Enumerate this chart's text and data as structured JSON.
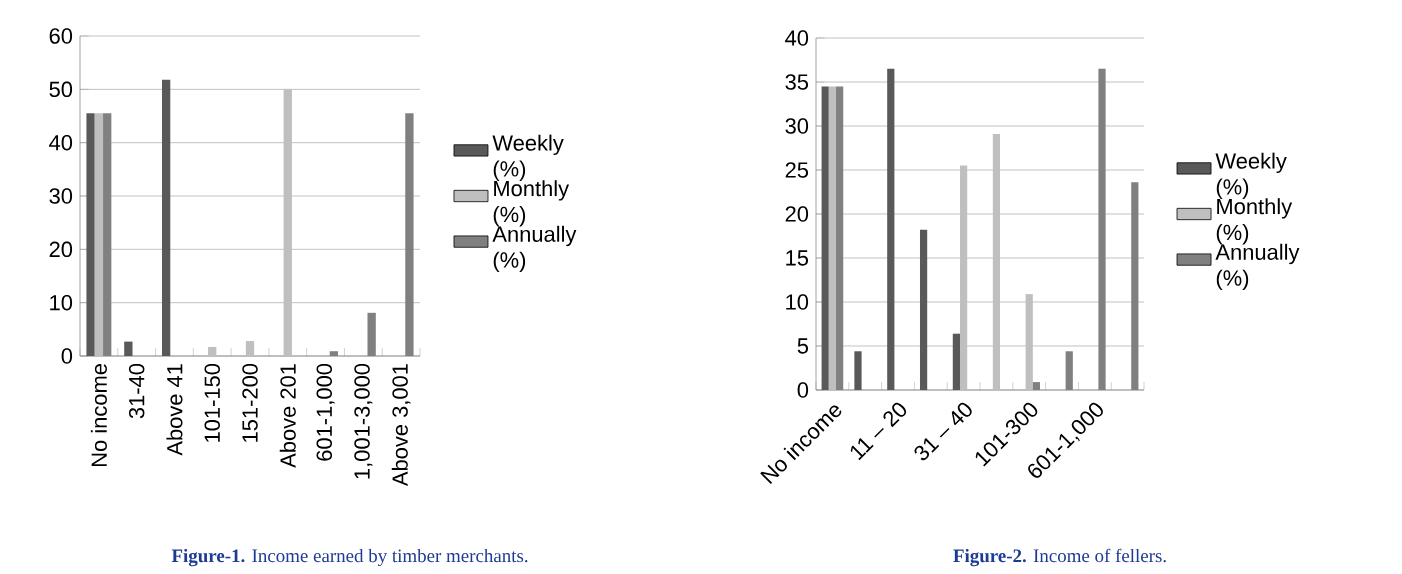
{
  "chart_data": [
    {
      "type": "bar",
      "categories": [
        "No income",
        "31-40",
        "Above 41",
        "101-150",
        "151-200",
        "Above 201",
        "601-1,000",
        "1,001-3,000",
        "Above 3,001"
      ],
      "series": [
        {
          "name": "Weekly (%)",
          "color": "#595959",
          "values": [
            45.5,
            2.7,
            51.8,
            null,
            null,
            null,
            null,
            null,
            null
          ]
        },
        {
          "name": "Monthly (%)",
          "color": "#bfbfbf",
          "values": [
            45.5,
            null,
            null,
            1.7,
            2.8,
            50,
            null,
            null,
            null
          ]
        },
        {
          "name": "Annually (%)",
          "color": "#808080",
          "values": [
            45.5,
            null,
            null,
            null,
            null,
            null,
            0.9,
            8.1,
            45.5
          ]
        }
      ],
      "ylim": [
        0,
        60
      ],
      "yticks": [
        0,
        10,
        20,
        30,
        40,
        50,
        60
      ],
      "grid": "y",
      "legend": "right",
      "annotations": [
        "**Figure-1.** Income earned by timber merchants."
      ]
    },
    {
      "type": "bar",
      "categories": [
        "No income",
        null,
        "11 – 20",
        null,
        "31 – 40",
        null,
        "101-300",
        null,
        "601-1,000",
        null
      ],
      "series": [
        {
          "name": "Weekly (%)",
          "color": "#595959",
          "values": [
            34.5,
            4.4,
            36.5,
            18.2,
            6.4,
            null,
            null,
            null,
            null,
            null
          ]
        },
        {
          "name": "Monthly (%)",
          "color": "#bfbfbf",
          "values": [
            34.5,
            null,
            null,
            null,
            25.5,
            29.1,
            10.9,
            null,
            null,
            null
          ]
        },
        {
          "name": "Annually (%)",
          "color": "#808080",
          "values": [
            34.5,
            null,
            null,
            null,
            null,
            null,
            0.9,
            4.4,
            36.5,
            23.6
          ]
        }
      ],
      "ylim": [
        0,
        40
      ],
      "yticks": [
        0,
        5,
        10,
        15,
        20,
        25,
        30,
        35,
        40
      ],
      "grid": "y",
      "legend": "right",
      "annotations": [
        "**Figure-2.** Income of fellers."
      ]
    }
  ]
}
